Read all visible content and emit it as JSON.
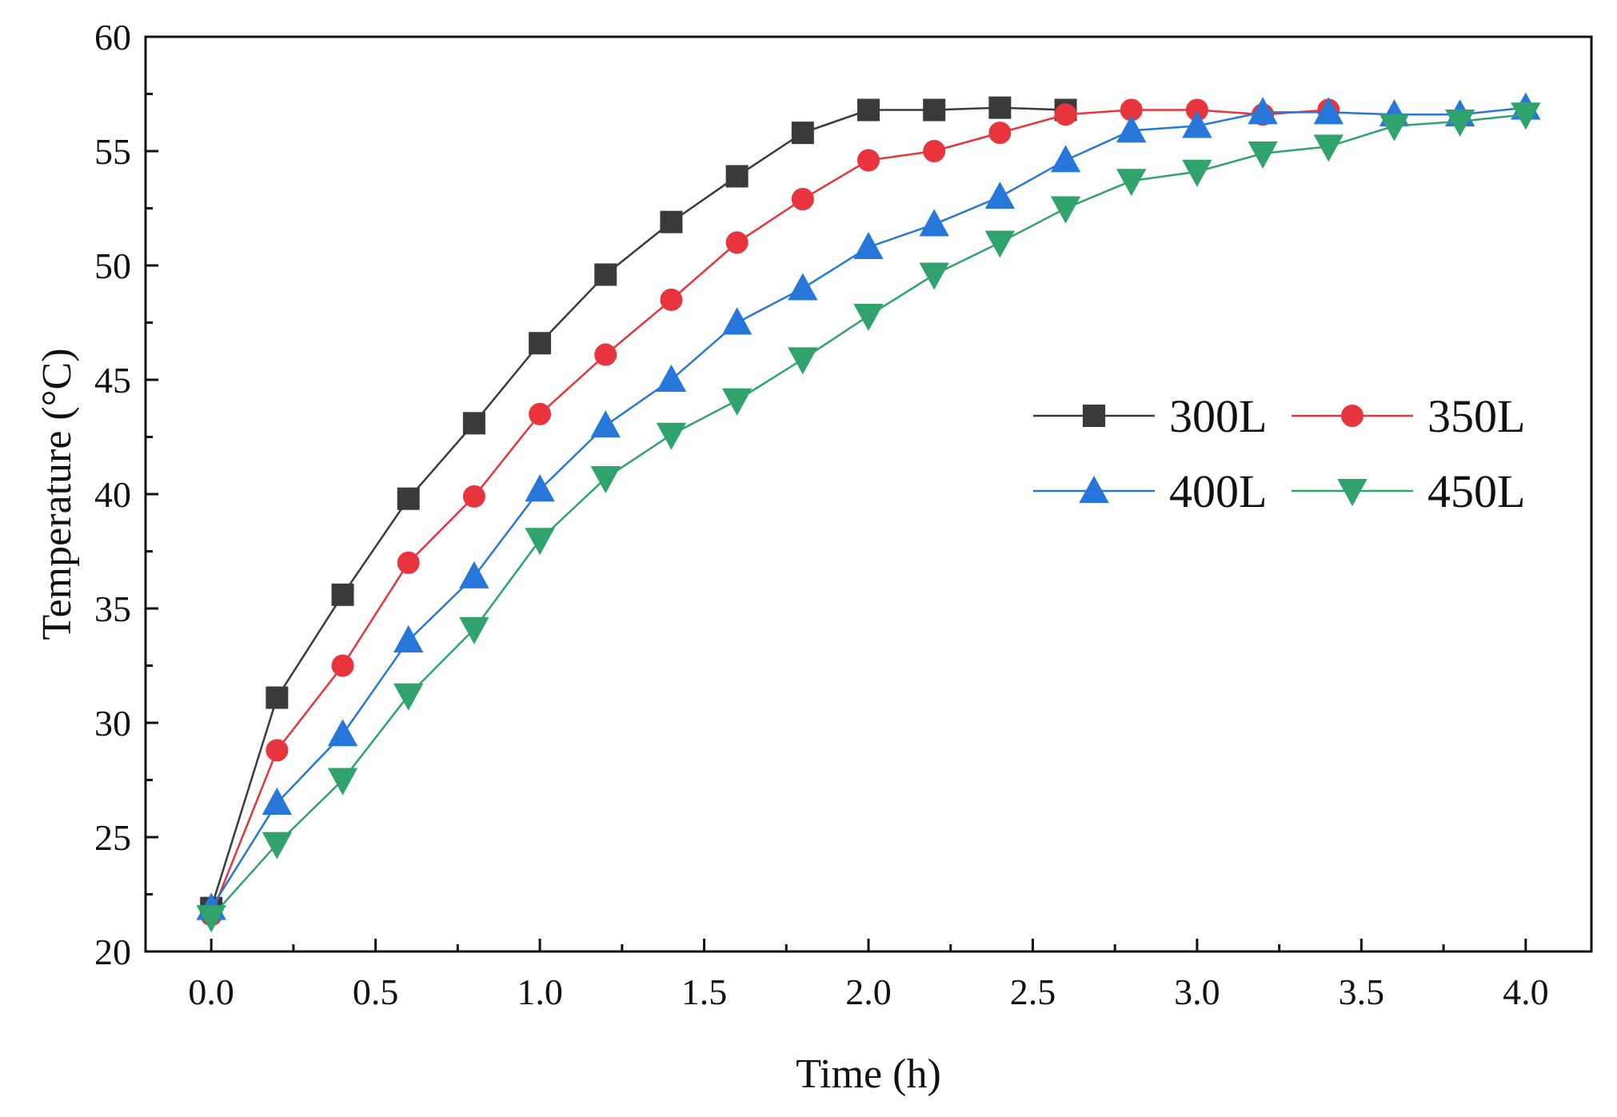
{
  "chart_data": {
    "type": "line",
    "title": "",
    "xlabel": "Time (h)",
    "ylabel": "Temperature (°C)",
    "xlim": [
      -0.2,
      4.2
    ],
    "ylim": [
      20,
      60
    ],
    "xticks": [
      "0.0",
      "0.5",
      "1.0",
      "1.5",
      "2.0",
      "2.5",
      "3.0",
      "3.5",
      "4.0"
    ],
    "yticks": [
      "20",
      "25",
      "30",
      "35",
      "40",
      "45",
      "50",
      "55",
      "60"
    ],
    "grid": false,
    "legend_position": "center-right",
    "series": [
      {
        "name": "300L",
        "color": "#3a3a3a",
        "marker": "square",
        "x": [
          0.0,
          0.2,
          0.4,
          0.6,
          0.8,
          1.0,
          1.2,
          1.4,
          1.6,
          1.8,
          2.0,
          2.2,
          2.4,
          2.6
        ],
        "y": [
          21.9,
          31.1,
          35.6,
          39.8,
          43.1,
          46.6,
          49.6,
          51.9,
          53.9,
          55.8,
          56.8,
          56.8,
          56.9,
          56.8
        ]
      },
      {
        "name": "350L",
        "color": "#e8343c",
        "marker": "circle",
        "x": [
          0.0,
          0.2,
          0.4,
          0.6,
          0.8,
          1.0,
          1.2,
          1.4,
          1.6,
          1.8,
          2.0,
          2.2,
          2.4,
          2.6,
          2.8,
          3.0,
          3.2,
          3.4
        ],
        "y": [
          21.6,
          28.8,
          32.5,
          37.0,
          39.9,
          43.5,
          46.1,
          48.5,
          51.0,
          52.9,
          54.6,
          55.0,
          55.8,
          56.6,
          56.8,
          56.8,
          56.6,
          56.8
        ]
      },
      {
        "name": "400L",
        "color": "#2677d9",
        "marker": "triangle-up",
        "x": [
          0.0,
          0.2,
          0.4,
          0.6,
          0.8,
          1.0,
          1.2,
          1.4,
          1.6,
          1.8,
          2.0,
          2.2,
          2.4,
          2.6,
          2.8,
          3.0,
          3.2,
          3.4,
          3.6,
          3.8,
          4.0
        ],
        "y": [
          21.9,
          26.5,
          29.5,
          33.6,
          36.4,
          40.2,
          43.0,
          45.0,
          47.5,
          49.0,
          50.8,
          51.8,
          53.0,
          54.6,
          55.9,
          56.1,
          56.7,
          56.7,
          56.6,
          56.6,
          56.9
        ]
      },
      {
        "name": "450L",
        "color": "#2fa36b",
        "marker": "triangle-down",
        "x": [
          0.0,
          0.2,
          0.4,
          0.6,
          0.8,
          1.0,
          1.2,
          1.4,
          1.6,
          1.8,
          2.0,
          2.2,
          2.4,
          2.6,
          2.8,
          3.0,
          3.2,
          3.4,
          3.6,
          3.8,
          4.0
        ],
        "y": [
          21.5,
          24.7,
          27.5,
          31.2,
          34.1,
          38.0,
          40.7,
          42.6,
          44.1,
          45.9,
          47.8,
          49.6,
          51.0,
          52.5,
          53.7,
          54.1,
          54.9,
          55.2,
          56.1,
          56.3,
          56.6
        ]
      }
    ]
  }
}
